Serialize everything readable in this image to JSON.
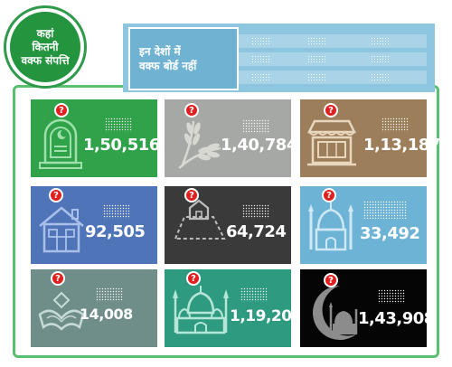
{
  "badge": {
    "line1": "कहां",
    "line2": "कितनी",
    "line3": "वक्फ संपत्ति"
  },
  "banner": {
    "line1": "इन देशों में",
    "line2": "वक्फ बोर्ड नहीं"
  },
  "tiles": [
    {
      "value": "1,50,516",
      "icon": "grave-icon",
      "color": "#2fa24a"
    },
    {
      "value": "1,40,784",
      "icon": "wheat-icon",
      "color": "#a5a8a4"
    },
    {
      "value": "1,13,187",
      "icon": "shop-icon",
      "color": "#9d7e5a"
    },
    {
      "value": "92,505",
      "icon": "house-icon",
      "color": "#4f74b8"
    },
    {
      "value": "64,724",
      "icon": "plot-icon",
      "color": "#3a3a3a"
    },
    {
      "value": "33,492",
      "icon": "mosque-icon",
      "color": "#6db3d6"
    },
    {
      "value": "14,008",
      "icon": "quran-icon",
      "color": "#6f8e8a"
    },
    {
      "value": "1,19,200",
      "icon": "mosque-domes-icon",
      "color": "#2e9a80"
    },
    {
      "value": "1,43,908",
      "icon": "crescent-mosque-icon",
      "color": "#050505"
    }
  ],
  "question_mark": "?"
}
